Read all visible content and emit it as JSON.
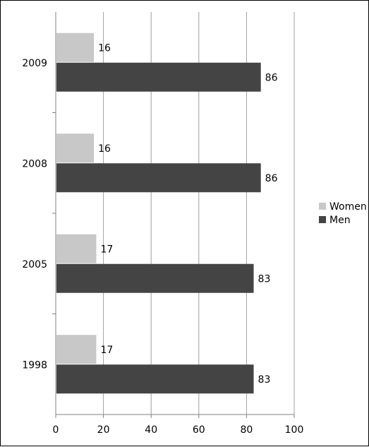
{
  "chart_data": {
    "type": "bar",
    "orientation": "horizontal",
    "categories": [
      "1998",
      "2005",
      "2008",
      "2009"
    ],
    "series": [
      {
        "name": "Women",
        "color": "#c8c8c8",
        "values": [
          17,
          17,
          16,
          16
        ]
      },
      {
        "name": "Men",
        "color": "#444444",
        "values": [
          83,
          83,
          86,
          86
        ]
      }
    ],
    "x_ticks": [
      "0",
      "20",
      "40",
      "60",
      "80",
      "100"
    ],
    "xlim": [
      0,
      100
    ],
    "title": "",
    "xlabel": "",
    "ylabel": "",
    "grid": "vertical",
    "legend": "right",
    "data_labels": true
  }
}
